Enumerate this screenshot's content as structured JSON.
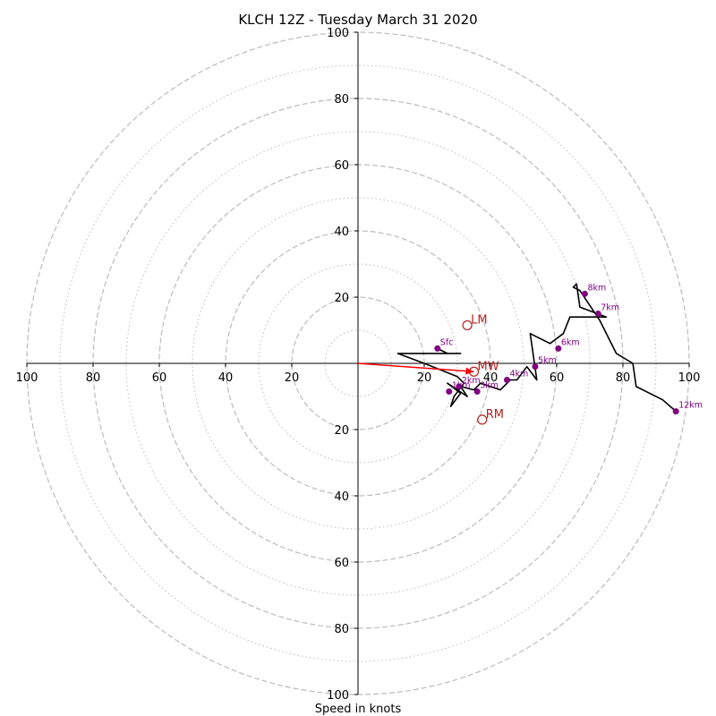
{
  "chart_data": {
    "type": "hodograph",
    "title": "KLCH 12Z - Tuesday March 31 2020",
    "xlabel": "Speed in knots",
    "max_speed": 100,
    "rings_major": [
      20,
      40,
      60,
      80,
      100
    ],
    "rings_minor": [
      10,
      30,
      50,
      70,
      90
    ],
    "tick_labels": {
      "x": [
        "100",
        "80",
        "60",
        "40",
        "20",
        "20",
        "40",
        "60",
        "80",
        "100"
      ],
      "y": [
        "100",
        "80",
        "60",
        "40",
        "20",
        "20",
        "40",
        "60",
        "80",
        "100"
      ]
    },
    "tick_values": {
      "x": [
        -100,
        -80,
        -60,
        -40,
        -20,
        20,
        40,
        60,
        80,
        100
      ],
      "y": [
        100,
        80,
        60,
        40,
        20,
        -20,
        -40,
        -60,
        -80,
        -100
      ]
    },
    "hodograph_trace": [
      [
        24,
        4.5
      ],
      [
        27,
        3
      ],
      [
        31,
        3
      ],
      [
        12,
        3
      ],
      [
        20,
        0
      ],
      [
        25,
        -2
      ],
      [
        30,
        -4
      ],
      [
        32,
        -6
      ],
      [
        29,
        -10
      ],
      [
        28,
        -13
      ],
      [
        31,
        -9
      ],
      [
        27,
        -6
      ],
      [
        30,
        -8
      ],
      [
        33,
        -10
      ],
      [
        31,
        -7
      ],
      [
        35,
        -8
      ],
      [
        37,
        -6
      ],
      [
        40,
        -7
      ],
      [
        43,
        -8
      ],
      [
        46,
        -5
      ],
      [
        48,
        -5
      ],
      [
        51,
        -1
      ],
      [
        54,
        -5
      ],
      [
        52,
        9
      ],
      [
        58,
        6
      ],
      [
        62,
        9
      ],
      [
        64,
        14
      ],
      [
        75,
        14
      ],
      [
        67,
        17
      ],
      [
        66,
        24
      ],
      [
        65,
        23
      ],
      [
        67,
        22
      ],
      [
        73,
        13
      ],
      [
        78,
        3
      ],
      [
        83,
        0
      ],
      [
        84,
        -7
      ],
      [
        92,
        -11
      ],
      [
        96,
        -14.5
      ]
    ],
    "height_markers": [
      {
        "label": "Sfc",
        "x": 24,
        "y": 4.5
      },
      {
        "label": "1km",
        "x": 27.5,
        "y": -8.5
      },
      {
        "label": "2km",
        "x": 30.5,
        "y": -7
      },
      {
        "label": "3km",
        "x": 36,
        "y": -8.5
      },
      {
        "label": "4km",
        "x": 45,
        "y": -5
      },
      {
        "label": "5km",
        "x": 53.5,
        "y": -1
      },
      {
        "label": "6km",
        "x": 60.5,
        "y": 4.5
      },
      {
        "label": "7km",
        "x": 72.5,
        "y": 15
      },
      {
        "label": "8km",
        "x": 68.5,
        "y": 21
      },
      {
        "label": "12km",
        "x": 96,
        "y": -14.5
      }
    ],
    "storm_motion": [
      {
        "label": "LM",
        "x": 33,
        "y": 11.5
      },
      {
        "label": "MW",
        "x": 35,
        "y": -2.5
      },
      {
        "label": "RM",
        "x": 37.5,
        "y": -17
      }
    ],
    "vector": {
      "x": 35,
      "y": -2.5
    },
    "colors": {
      "trace": "#000000",
      "markers": "#800080",
      "storm_motion": "#b22222",
      "vector": "#ff0000",
      "grid": "#bbbbbb"
    }
  }
}
